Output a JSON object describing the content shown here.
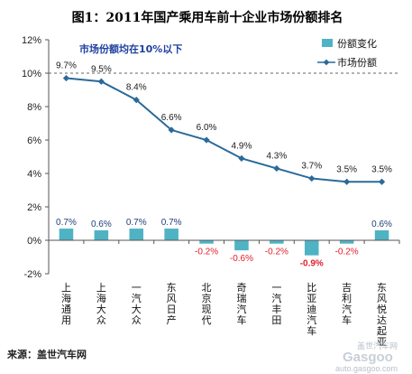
{
  "chart_data": {
    "type": "bar",
    "title": "图1：2011年国产乘用车前十企业市场份额排名",
    "categories": [
      "上海通用",
      "上海大众",
      "一汽大众",
      "东风日产",
      "北京现代",
      "奇瑞汽车",
      "一汽丰田",
      "比亚迪汽车",
      "吉利汽车",
      "东风悦达起亚"
    ],
    "series": [
      {
        "name": "份额变化",
        "chart_type": "bar",
        "values": [
          0.7,
          0.6,
          0.7,
          0.7,
          -0.2,
          -0.6,
          -0.2,
          -0.9,
          -0.2,
          0.6
        ],
        "labels": [
          "0.7%",
          "0.6%",
          "0.7%",
          "0.7%",
          "-0.2%",
          "-0.6%",
          "-0.2%",
          "-0.9%",
          "-0.2%",
          "0.6%"
        ]
      },
      {
        "name": "市场份额",
        "chart_type": "line",
        "values": [
          9.7,
          9.5,
          8.4,
          6.6,
          6.0,
          4.9,
          4.3,
          3.7,
          3.5,
          3.5
        ],
        "labels": [
          "9.7%",
          "9.5%",
          "8.4%",
          "6.6%",
          "6.0%",
          "4.9%",
          "4.3%",
          "3.7%",
          "3.5%",
          "3.5%"
        ]
      }
    ],
    "ylim": [
      -2,
      12
    ],
    "yticks": [
      -2,
      0,
      2,
      4,
      6,
      8,
      10,
      12
    ],
    "ytick_labels": [
      "-2%",
      "0%",
      "2%",
      "4%",
      "6%",
      "8%",
      "10%",
      "12%"
    ],
    "gridline": 10,
    "grid": false,
    "legend_position": "top-right",
    "annotation": "市场份额均在10%以下",
    "colors": {
      "bar": "#4fb3c4",
      "line": "#2a6a9a",
      "positive_label": "#1f3f78",
      "negative_label": "#e0202c",
      "axis": "#555555"
    }
  },
  "source": "来源：盖世汽车网",
  "watermark": {
    "brand": "Gasgoo",
    "tagline": "盖世汽车网",
    "url": "auto.gasgoo.com"
  }
}
